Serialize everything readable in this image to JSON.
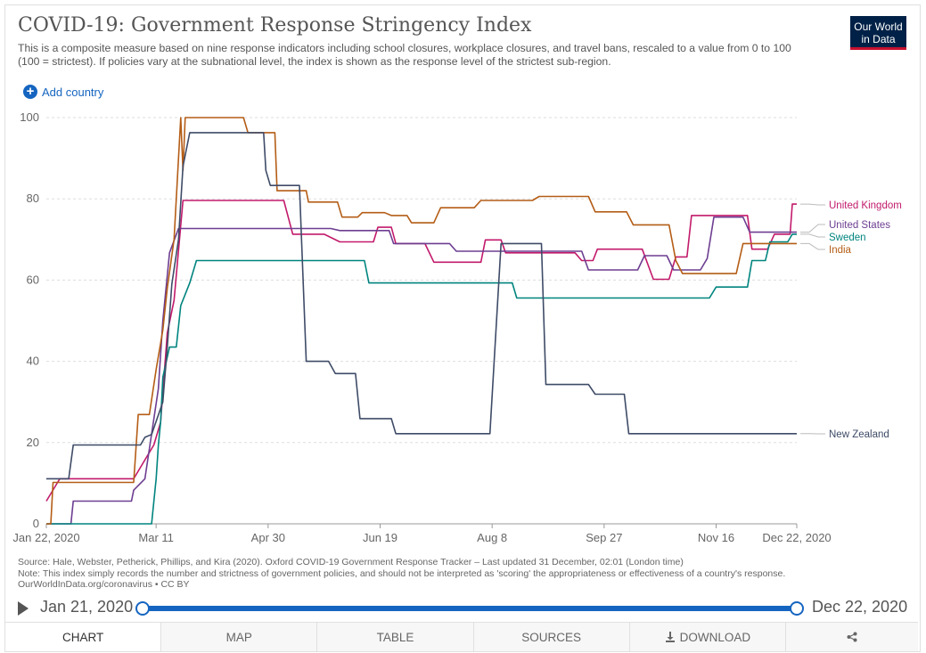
{
  "header": {
    "title": "COVID-19: Government Response Stringency Index",
    "subtitle": "This is a composite measure based on nine response indicators including school closures, workplace closures, and travel bans, rescaled to a value from 0 to 100 (100 = strictest). If policies vary at the subnational level, the index is shown as the response level of the strictest sub-region.",
    "logo_line1": "Our World",
    "logo_line2": "in Data",
    "add_country": "Add country"
  },
  "chart_data": {
    "type": "line",
    "title": "COVID-19: Government Response Stringency Index",
    "x_tick_labels": [
      "Jan 22, 2020",
      "Mar 11",
      "Apr 30",
      "Jun 19",
      "Aug 8",
      "Sep 27",
      "Nov 16",
      "Dec 22, 2020"
    ],
    "x_tick_dates": [
      "2020-01-22",
      "2020-03-11",
      "2020-04-30",
      "2020-06-19",
      "2020-08-08",
      "2020-09-27",
      "2020-11-16",
      "2020-12-22"
    ],
    "y_ticks": [
      "0",
      "20",
      "40",
      "60",
      "80",
      "100"
    ],
    "xlim": [
      "2020-01-22",
      "2020-12-22"
    ],
    "ylim": [
      0,
      100
    ],
    "grid": true,
    "legend": "right, inline labels",
    "series": [
      {
        "name": "United Kingdom",
        "color": "#c21a6b",
        "points": [
          [
            "2020-01-22",
            5.6
          ],
          [
            "2020-01-28",
            11.1
          ],
          [
            "2020-03-01",
            11.1
          ],
          [
            "2020-03-04",
            13.9
          ],
          [
            "2020-03-10",
            19.4
          ],
          [
            "2020-03-13",
            25
          ],
          [
            "2020-03-16",
            47
          ],
          [
            "2020-03-19",
            55
          ],
          [
            "2020-03-23",
            79.6
          ],
          [
            "2020-05-07",
            79.6
          ],
          [
            "2020-05-11",
            71.3
          ],
          [
            "2020-05-25",
            71.3
          ],
          [
            "2020-06-01",
            69.4
          ],
          [
            "2020-06-16",
            69.4
          ],
          [
            "2020-06-18",
            73
          ],
          [
            "2020-06-24",
            73
          ],
          [
            "2020-06-26",
            69
          ],
          [
            "2020-07-09",
            69
          ],
          [
            "2020-07-13",
            64.4
          ],
          [
            "2020-08-03",
            64.4
          ],
          [
            "2020-08-05",
            69.9
          ],
          [
            "2020-08-12",
            69.9
          ],
          [
            "2020-08-14",
            66.7
          ],
          [
            "2020-09-14",
            66.7
          ],
          [
            "2020-09-17",
            64.8
          ],
          [
            "2020-09-22",
            64.8
          ],
          [
            "2020-09-24",
            67.6
          ],
          [
            "2020-10-14",
            67.6
          ],
          [
            "2020-10-19",
            60.2
          ],
          [
            "2020-10-26",
            60.2
          ],
          [
            "2020-10-29",
            65.7
          ],
          [
            "2020-11-03",
            65.7
          ],
          [
            "2020-11-05",
            75.9
          ],
          [
            "2020-11-30",
            75.9
          ],
          [
            "2020-12-02",
            67.6
          ],
          [
            "2020-12-09",
            67.6
          ],
          [
            "2020-12-12",
            71.3
          ],
          [
            "2020-12-19",
            71.3
          ],
          [
            "2020-12-20",
            78.7
          ],
          [
            "2020-12-22",
            78.7
          ]
        ]
      },
      {
        "name": "United States",
        "color": "#6d3e91",
        "points": [
          [
            "2020-01-22",
            0
          ],
          [
            "2020-02-02",
            0
          ],
          [
            "2020-02-03",
            5.6
          ],
          [
            "2020-02-29",
            5.6
          ],
          [
            "2020-03-01",
            8.3
          ],
          [
            "2020-03-06",
            11.1
          ],
          [
            "2020-03-12",
            33.3
          ],
          [
            "2020-03-14",
            50
          ],
          [
            "2020-03-17",
            66.7
          ],
          [
            "2020-03-21",
            72.7
          ],
          [
            "2020-05-28",
            72.7
          ],
          [
            "2020-06-01",
            72.2
          ],
          [
            "2020-06-23",
            72.2
          ],
          [
            "2020-06-25",
            69
          ],
          [
            "2020-07-20",
            69
          ],
          [
            "2020-07-23",
            67.1
          ],
          [
            "2020-09-17",
            67.1
          ],
          [
            "2020-09-20",
            62.5
          ],
          [
            "2020-10-12",
            62.5
          ],
          [
            "2020-10-15",
            66
          ],
          [
            "2020-10-25",
            66
          ],
          [
            "2020-10-28",
            62.5
          ],
          [
            "2020-11-09",
            62.5
          ],
          [
            "2020-11-12",
            65.3
          ],
          [
            "2020-11-15",
            75.5
          ],
          [
            "2020-11-28",
            75.5
          ],
          [
            "2020-12-01",
            71.8
          ],
          [
            "2020-12-22",
            71.8
          ]
        ]
      },
      {
        "name": "Sweden",
        "color": "#00847e",
        "points": [
          [
            "2020-01-22",
            0
          ],
          [
            "2020-03-09",
            0
          ],
          [
            "2020-03-11",
            11.1
          ],
          [
            "2020-03-12",
            19.4
          ],
          [
            "2020-03-13",
            25
          ],
          [
            "2020-03-14",
            36.1
          ],
          [
            "2020-03-17",
            43.5
          ],
          [
            "2020-03-20",
            43.5
          ],
          [
            "2020-03-22",
            53.7
          ],
          [
            "2020-03-26",
            59.3
          ],
          [
            "2020-03-29",
            64.8
          ],
          [
            "2020-06-12",
            64.8
          ],
          [
            "2020-06-14",
            59.3
          ],
          [
            "2020-08-17",
            59.3
          ],
          [
            "2020-08-19",
            55.6
          ],
          [
            "2020-11-13",
            55.6
          ],
          [
            "2020-11-16",
            58.3
          ],
          [
            "2020-11-30",
            58.3
          ],
          [
            "2020-12-02",
            64.8
          ],
          [
            "2020-12-08",
            64.8
          ],
          [
            "2020-12-10",
            69.4
          ],
          [
            "2020-12-18",
            69.4
          ],
          [
            "2020-12-20",
            71.3
          ],
          [
            "2020-12-22",
            71.3
          ]
        ]
      },
      {
        "name": "India",
        "color": "#b45d16",
        "points": [
          [
            "2020-01-22",
            0
          ],
          [
            "2020-01-24",
            0
          ],
          [
            "2020-01-25",
            10.2
          ],
          [
            "2020-02-13",
            10.2
          ],
          [
            "2020-02-15",
            10.2
          ],
          [
            "2020-03-01",
            10.2
          ],
          [
            "2020-03-03",
            26.9
          ],
          [
            "2020-03-08",
            26.9
          ],
          [
            "2020-03-11",
            38
          ],
          [
            "2020-03-14",
            47.7
          ],
          [
            "2020-03-16",
            58
          ],
          [
            "2020-03-19",
            70
          ],
          [
            "2020-03-22",
            100
          ],
          [
            "2020-03-23",
            87
          ],
          [
            "2020-03-24",
            100
          ],
          [
            "2020-04-19",
            100
          ],
          [
            "2020-04-21",
            96.3
          ],
          [
            "2020-05-03",
            96.3
          ],
          [
            "2020-05-04",
            82
          ],
          [
            "2020-05-17",
            82
          ],
          [
            "2020-05-18",
            79.2
          ],
          [
            "2020-05-31",
            79.2
          ],
          [
            "2020-06-02",
            75.5
          ],
          [
            "2020-06-09",
            75.5
          ],
          [
            "2020-06-11",
            76.6
          ],
          [
            "2020-06-21",
            76.6
          ],
          [
            "2020-06-24",
            75.9
          ],
          [
            "2020-07-01",
            75.9
          ],
          [
            "2020-07-03",
            74.1
          ],
          [
            "2020-07-13",
            74.1
          ],
          [
            "2020-07-16",
            77.8
          ],
          [
            "2020-07-31",
            77.8
          ],
          [
            "2020-08-03",
            79.6
          ],
          [
            "2020-08-26",
            79.6
          ],
          [
            "2020-08-29",
            80.6
          ],
          [
            "2020-09-20",
            80.6
          ],
          [
            "2020-09-23",
            76.8
          ],
          [
            "2020-10-07",
            76.8
          ],
          [
            "2020-10-10",
            73.6
          ],
          [
            "2020-10-26",
            73.6
          ],
          [
            "2020-10-29",
            64.8
          ],
          [
            "2020-11-01",
            61.6
          ],
          [
            "2020-11-25",
            61.6
          ],
          [
            "2020-11-28",
            69
          ],
          [
            "2020-12-22",
            69
          ]
        ]
      },
      {
        "name": "New Zealand",
        "color": "#3e4b67",
        "points": [
          [
            "2020-01-22",
            11.1
          ],
          [
            "2020-02-01",
            11.1
          ],
          [
            "2020-02-03",
            19.4
          ],
          [
            "2020-03-04",
            19.4
          ],
          [
            "2020-03-06",
            21.3
          ],
          [
            "2020-03-09",
            22
          ],
          [
            "2020-03-14",
            30
          ],
          [
            "2020-03-16",
            43.5
          ],
          [
            "2020-03-18",
            59
          ],
          [
            "2020-03-21",
            70
          ],
          [
            "2020-03-23",
            88
          ],
          [
            "2020-03-26",
            96.3
          ],
          [
            "2020-04-28",
            96.3
          ],
          [
            "2020-04-29",
            87
          ],
          [
            "2020-05-01",
            83.3
          ],
          [
            "2020-05-14",
            83.3
          ],
          [
            "2020-05-17",
            40
          ],
          [
            "2020-05-27",
            40
          ],
          [
            "2020-05-30",
            37
          ],
          [
            "2020-06-08",
            37
          ],
          [
            "2020-06-10",
            25.9
          ],
          [
            "2020-06-24",
            25.9
          ],
          [
            "2020-06-26",
            22.2
          ],
          [
            "2020-08-07",
            22.2
          ],
          [
            "2020-08-12",
            69
          ],
          [
            "2020-08-30",
            69
          ],
          [
            "2020-09-01",
            34.3
          ],
          [
            "2020-09-20",
            34.3
          ],
          [
            "2020-09-23",
            31.9
          ],
          [
            "2020-10-06",
            31.9
          ],
          [
            "2020-10-08",
            22.2
          ],
          [
            "2020-12-22",
            22.2
          ]
        ]
      }
    ]
  },
  "footer": {
    "source": "Source: Hale, Webster, Petherick, Phillips, and Kira (2020). Oxford COVID-19 Government Response Tracker – Last updated 31 December, 02:01 (London time)",
    "note": "Note: This index simply records the number and strictness of government policies, and should not be interpreted as 'scoring' the appropriateness or effectiveness of a country's response.",
    "url": "OurWorldInData.org/coronavirus • CC BY"
  },
  "timeline": {
    "start": "Jan 21, 2020",
    "end": "Dec 22, 2020",
    "range_start_fraction": 0,
    "range_end_fraction": 1
  },
  "tabs": [
    {
      "label": "CHART",
      "icon": "none"
    },
    {
      "label": "MAP",
      "icon": "none"
    },
    {
      "label": "TABLE",
      "icon": "none"
    },
    {
      "label": "SOURCES",
      "icon": "none"
    },
    {
      "label": "DOWNLOAD",
      "icon": "download-icon"
    },
    {
      "label": "",
      "icon": "share-icon"
    }
  ],
  "colors": {
    "accent": "#1565c0",
    "logo_bg": "#002147",
    "logo_bar": "#c8102e"
  }
}
